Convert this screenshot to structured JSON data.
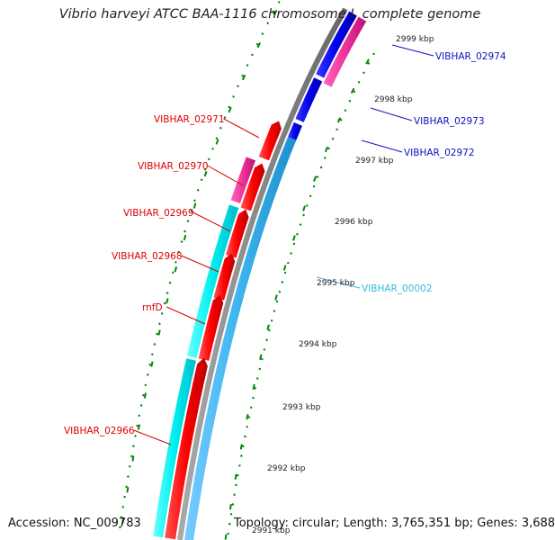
{
  "title": "Vibrio harveyi ATCC BAA-1116 chromosome I, complete genome",
  "footer": {
    "accession": "Accession: NC_009783",
    "summary": "Topology: circular; Length: 3,765,351 bp; Genes: 3,688"
  },
  "ticks": [
    "2999 kbp",
    "2998 kbp",
    "2997 kbp",
    "2996 kbp",
    "2995 kbp",
    "2994 kbp",
    "2993 kbp",
    "2992 kbp",
    "2991 kbp"
  ],
  "genes_left": [
    {
      "label": "VIBHAR_02971",
      "color": "#dd0000"
    },
    {
      "label": "VIBHAR_02970",
      "color": "#dd0000"
    },
    {
      "label": "VIBHAR_02969",
      "color": "#dd0000"
    },
    {
      "label": "VIBHAR_02968",
      "color": "#dd0000"
    },
    {
      "label": "rnfD",
      "color": "#dd0000"
    },
    {
      "label": "VIBHAR_02966",
      "color": "#dd0000"
    }
  ],
  "genes_right": [
    {
      "label": "VIBHAR_02974",
      "color": "#1010c0"
    },
    {
      "label": "VIBHAR_02973",
      "color": "#1010c0"
    },
    {
      "label": "VIBHAR_02972",
      "color": "#1010c0"
    },
    {
      "label": "VIBHAR_00002",
      "color": "#33bbdd"
    }
  ],
  "colors": {
    "backbone": "#888888",
    "forward_cds": "#ff1111",
    "reverse_cds": "#0000ee",
    "rna_cyan": "#00eeee",
    "sky_blue": "#44bbee",
    "magenta": "#ee3399",
    "tick_green": "#008800"
  }
}
